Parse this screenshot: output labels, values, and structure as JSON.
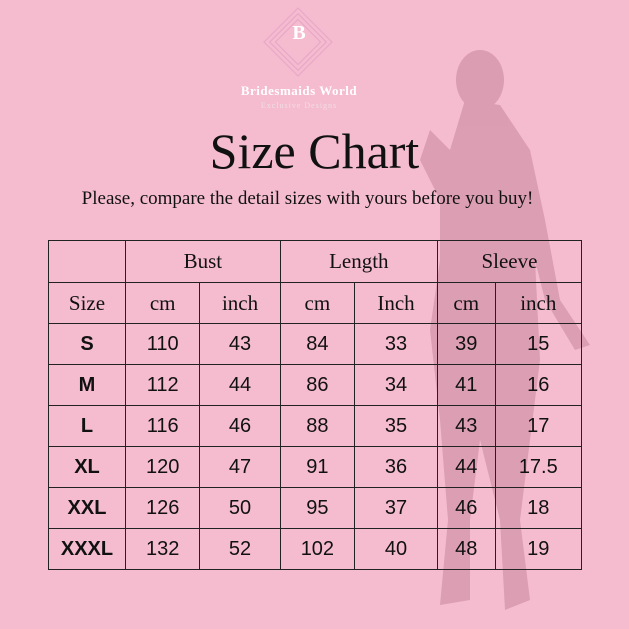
{
  "brand": {
    "initial": "B",
    "name": "Bridesmaids World",
    "tagline": "Exclusive Designs"
  },
  "title": "Size Chart",
  "subtitle": "Please, compare the detail sizes with yours before you buy!",
  "table": {
    "groups": [
      "Bust",
      "Length",
      "Sleeve"
    ],
    "subheaders": [
      "Size",
      "cm",
      "inch",
      "cm",
      "Inch",
      "cm",
      "inch"
    ],
    "rows": [
      [
        "S",
        "110",
        "43",
        "84",
        "33",
        "39",
        "15"
      ],
      [
        "M",
        "112",
        "44",
        "86",
        "34",
        "41",
        "16"
      ],
      [
        "L",
        "116",
        "46",
        "88",
        "35",
        "43",
        "17"
      ],
      [
        "XL",
        "120",
        "47",
        "91",
        "36",
        "44",
        "17.5"
      ],
      [
        "XXL",
        "126",
        "50",
        "95",
        "37",
        "46",
        "18"
      ],
      [
        "XXXL",
        "132",
        "52",
        "102",
        "40",
        "48",
        "19"
      ]
    ]
  },
  "colors": {
    "background": "#f5bccf",
    "silhouette": "#d99aae"
  }
}
